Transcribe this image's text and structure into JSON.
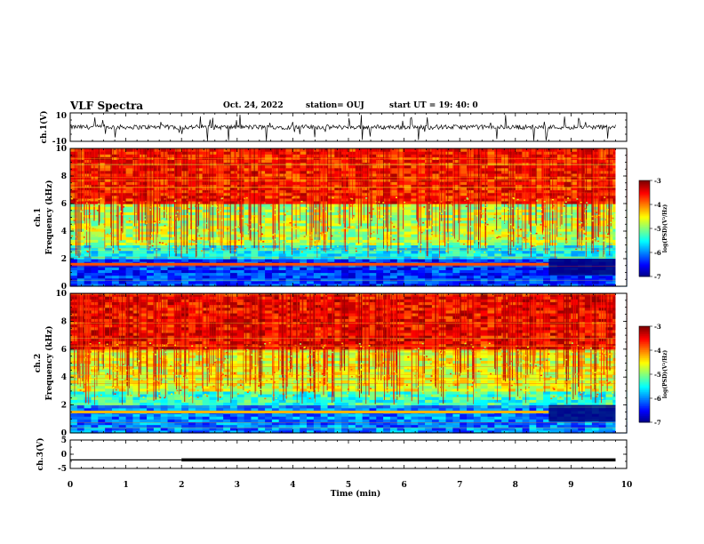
{
  "header": {
    "title": "VLF Spectra",
    "date": "Oct. 24, 2022",
    "station": "station= OUJ",
    "start": "start  UT =   19: 40: 0"
  },
  "chart_data": [
    {
      "type": "line",
      "panel": "ch1-waveform",
      "ylabel": "ch.1(V)",
      "ylim": [
        -10,
        10
      ],
      "yticks": [
        "10",
        "-10"
      ],
      "xlim": [
        0,
        10
      ],
      "series": [
        {
          "values_summary": "noisy signal centered near 0 V with spikes to about -10 V"
        }
      ]
    },
    {
      "type": "heatmap",
      "panel": "ch1-spectrogram",
      "ylabel_top": "ch.1",
      "ylabel": "Frequency  (kHz)",
      "ylim": [
        0,
        10
      ],
      "yticks": [
        "0",
        "2",
        "4",
        "6",
        "8",
        "10"
      ],
      "xlim": [
        0,
        10
      ],
      "colorbar": {
        "label": "log(PSD)(V²/Hz)",
        "range": [
          -7,
          -3
        ],
        "ticks": [
          "-3",
          "-4",
          "-5",
          "-6",
          "-7"
        ]
      },
      "bands": [
        {
          "from_khz": 0,
          "to_khz": 2,
          "level": -6.3
        },
        {
          "from_khz": 2,
          "to_khz": 3,
          "level": -5.5
        },
        {
          "from_khz": 3,
          "to_khz": 6,
          "level": -4.8
        },
        {
          "from_khz": 6,
          "to_khz": 10,
          "level": -3.6
        }
      ],
      "lines": [
        {
          "khz": 1.6,
          "t_start_min": 0,
          "t_end_min": 8.6,
          "level": -3.8
        }
      ]
    },
    {
      "type": "heatmap",
      "panel": "ch2-spectrogram",
      "ylabel_top": "ch.2",
      "ylabel": "Frequency  (kHz)",
      "ylim": [
        0,
        10
      ],
      "yticks": [
        "0",
        "2",
        "4",
        "6",
        "8",
        "10"
      ],
      "xlim": [
        0,
        10
      ],
      "colorbar": {
        "label": "log(PSD)(V²/Hz)",
        "range": [
          -7,
          -3
        ],
        "ticks": [
          "-3",
          "-4",
          "-5",
          "-6",
          "-7"
        ]
      },
      "bands": [
        {
          "from_khz": 0,
          "to_khz": 2,
          "level": -6.0
        },
        {
          "from_khz": 2,
          "to_khz": 3,
          "level": -5.3
        },
        {
          "from_khz": 3,
          "to_khz": 6,
          "level": -4.6
        },
        {
          "from_khz": 6,
          "to_khz": 10,
          "level": -3.5
        }
      ],
      "lines": [
        {
          "khz": 1.5,
          "t_start_min": 0,
          "t_end_min": 8.6,
          "level": -4.2
        }
      ]
    },
    {
      "type": "line",
      "panel": "ch3-waveform",
      "ylabel": "ch.3(V)",
      "ylim": [
        -5,
        5
      ],
      "yticks": [
        "5",
        "0",
        "-5"
      ],
      "xlim": [
        0,
        10
      ],
      "series": [
        {
          "x": [
            0,
            2,
            2,
            9.8
          ],
          "values": [
            -2,
            -2,
            -2,
            -2
          ],
          "note": "line thickens after 2 min"
        }
      ]
    }
  ],
  "xaxis": {
    "label": "Time  (min)",
    "ticks": [
      "0",
      "1",
      "2",
      "3",
      "4",
      "5",
      "6",
      "7",
      "8",
      "9",
      "10"
    ]
  }
}
